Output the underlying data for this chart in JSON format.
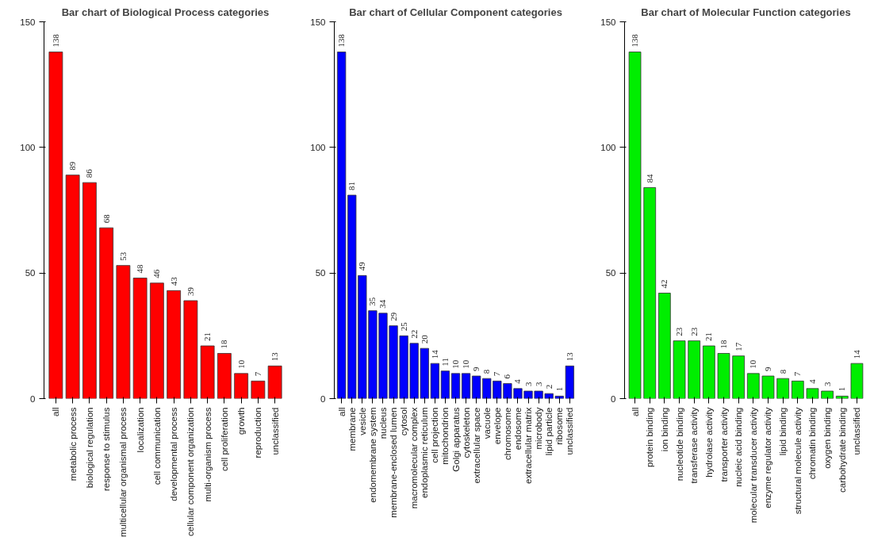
{
  "chart_data": [
    {
      "type": "bar",
      "title": "Bar chart of Biological Process categories",
      "categories": [
        "all",
        "metabolic process",
        "biological regulation",
        "response to stimulus",
        "multicellular organismal process",
        "localization",
        "cell communication",
        "developmental process",
        "cellular component organization",
        "multi-organism process",
        "cell proliferation",
        "growth",
        "reproduction",
        "unclassified"
      ],
      "values": [
        138,
        89,
        86,
        68,
        53,
        48,
        46,
        43,
        39,
        21,
        18,
        10,
        7,
        13
      ],
      "color": "#ff0000",
      "ylim": [
        0,
        150
      ],
      "yticks": [
        0,
        50,
        100,
        150
      ],
      "data_labels": true,
      "grid": false
    },
    {
      "type": "bar",
      "title": "Bar chart of Cellular Component categories",
      "categories": [
        "all",
        "membrane",
        "vesicle",
        "endomembrane system",
        "nucleus",
        "membrane-enclosed lumen",
        "cytosol",
        "macromolecular complex",
        "endoplasmic reticulum",
        "cell projection",
        "mitochondrion",
        "Golgi apparatus",
        "cytoskeleton",
        "extracellular space",
        "vacuole",
        "envelope",
        "chromosome",
        "endosome",
        "extracellular matrix",
        "microbody",
        "lipid particle",
        "ribosome",
        "unclassified"
      ],
      "values": [
        138,
        81,
        49,
        35,
        34,
        29,
        25,
        22,
        20,
        14,
        11,
        10,
        10,
        9,
        8,
        7,
        6,
        4,
        3,
        3,
        2,
        1,
        13
      ],
      "color": "#0000ff",
      "ylim": [
        0,
        150
      ],
      "yticks": [
        0,
        50,
        100,
        150
      ],
      "data_labels": true,
      "grid": false
    },
    {
      "type": "bar",
      "title": "Bar chart of Molecular Function categories",
      "categories": [
        "all",
        "protein binding",
        "ion binding",
        "nucleotide binding",
        "transferase activity",
        "hydrolase activity",
        "transporter activity",
        "nucleic acid binding",
        "molecular transducer activity",
        "enzyme regulator activity",
        "lipid binding",
        "structural molecule activity",
        "chromatin binding",
        "oxygen binding",
        "carbohydrate binding",
        "unclassified"
      ],
      "values": [
        138,
        84,
        42,
        23,
        23,
        21,
        18,
        17,
        10,
        9,
        8,
        7,
        4,
        3,
        1,
        14
      ],
      "color": "#00ee00",
      "ylim": [
        0,
        150
      ],
      "yticks": [
        0,
        50,
        100,
        150
      ],
      "data_labels": true,
      "grid": false
    }
  ]
}
